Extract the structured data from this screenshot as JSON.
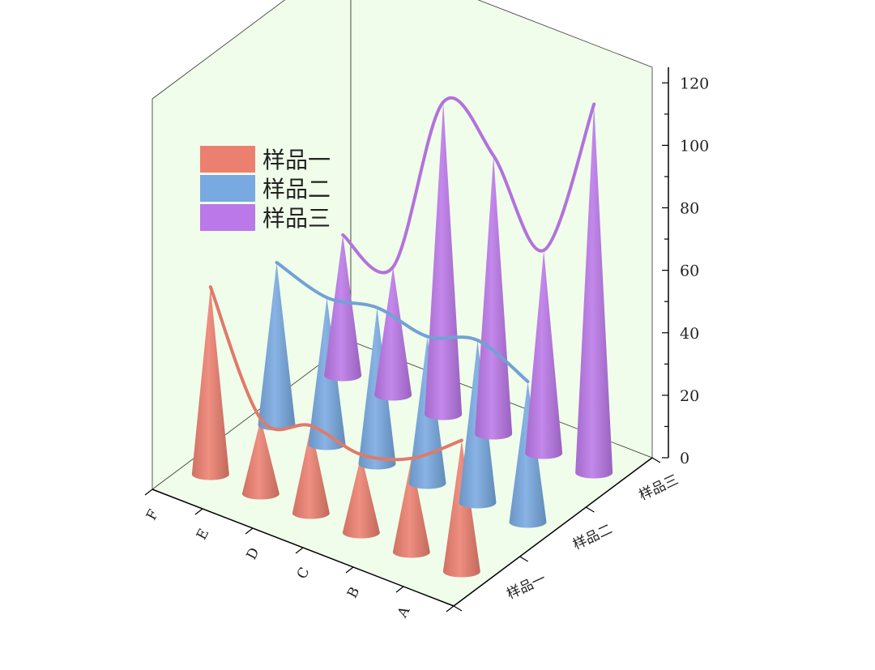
{
  "chart_data": {
    "type": "bar",
    "mark_shape": "cone",
    "view": "3d",
    "categories": [
      "A",
      "B",
      "C",
      "D",
      "E",
      "F"
    ],
    "series": [
      {
        "name": "样品一",
        "values": [
          42,
          30,
          25,
          28,
          24,
          60
        ],
        "color": "#ec8070"
      },
      {
        "name": "样品二",
        "values": [
          45,
          52,
          47,
          50,
          47,
          52
        ],
        "color": "#78a9e0"
      },
      {
        "name": "样品三",
        "values": [
          118,
          65,
          89,
          100,
          41,
          45
        ],
        "color": "#bb78e8"
      }
    ],
    "z_ticks": [
      0,
      20,
      40,
      60,
      80,
      100,
      120
    ],
    "zlim": [
      0,
      125
    ],
    "legend_position": "top-left",
    "smooth_curve_over_cone_tips": true,
    "wall_color": "#f0fdea",
    "title": "",
    "xlabel": "",
    "ylabel": "",
    "zlabel": ""
  }
}
